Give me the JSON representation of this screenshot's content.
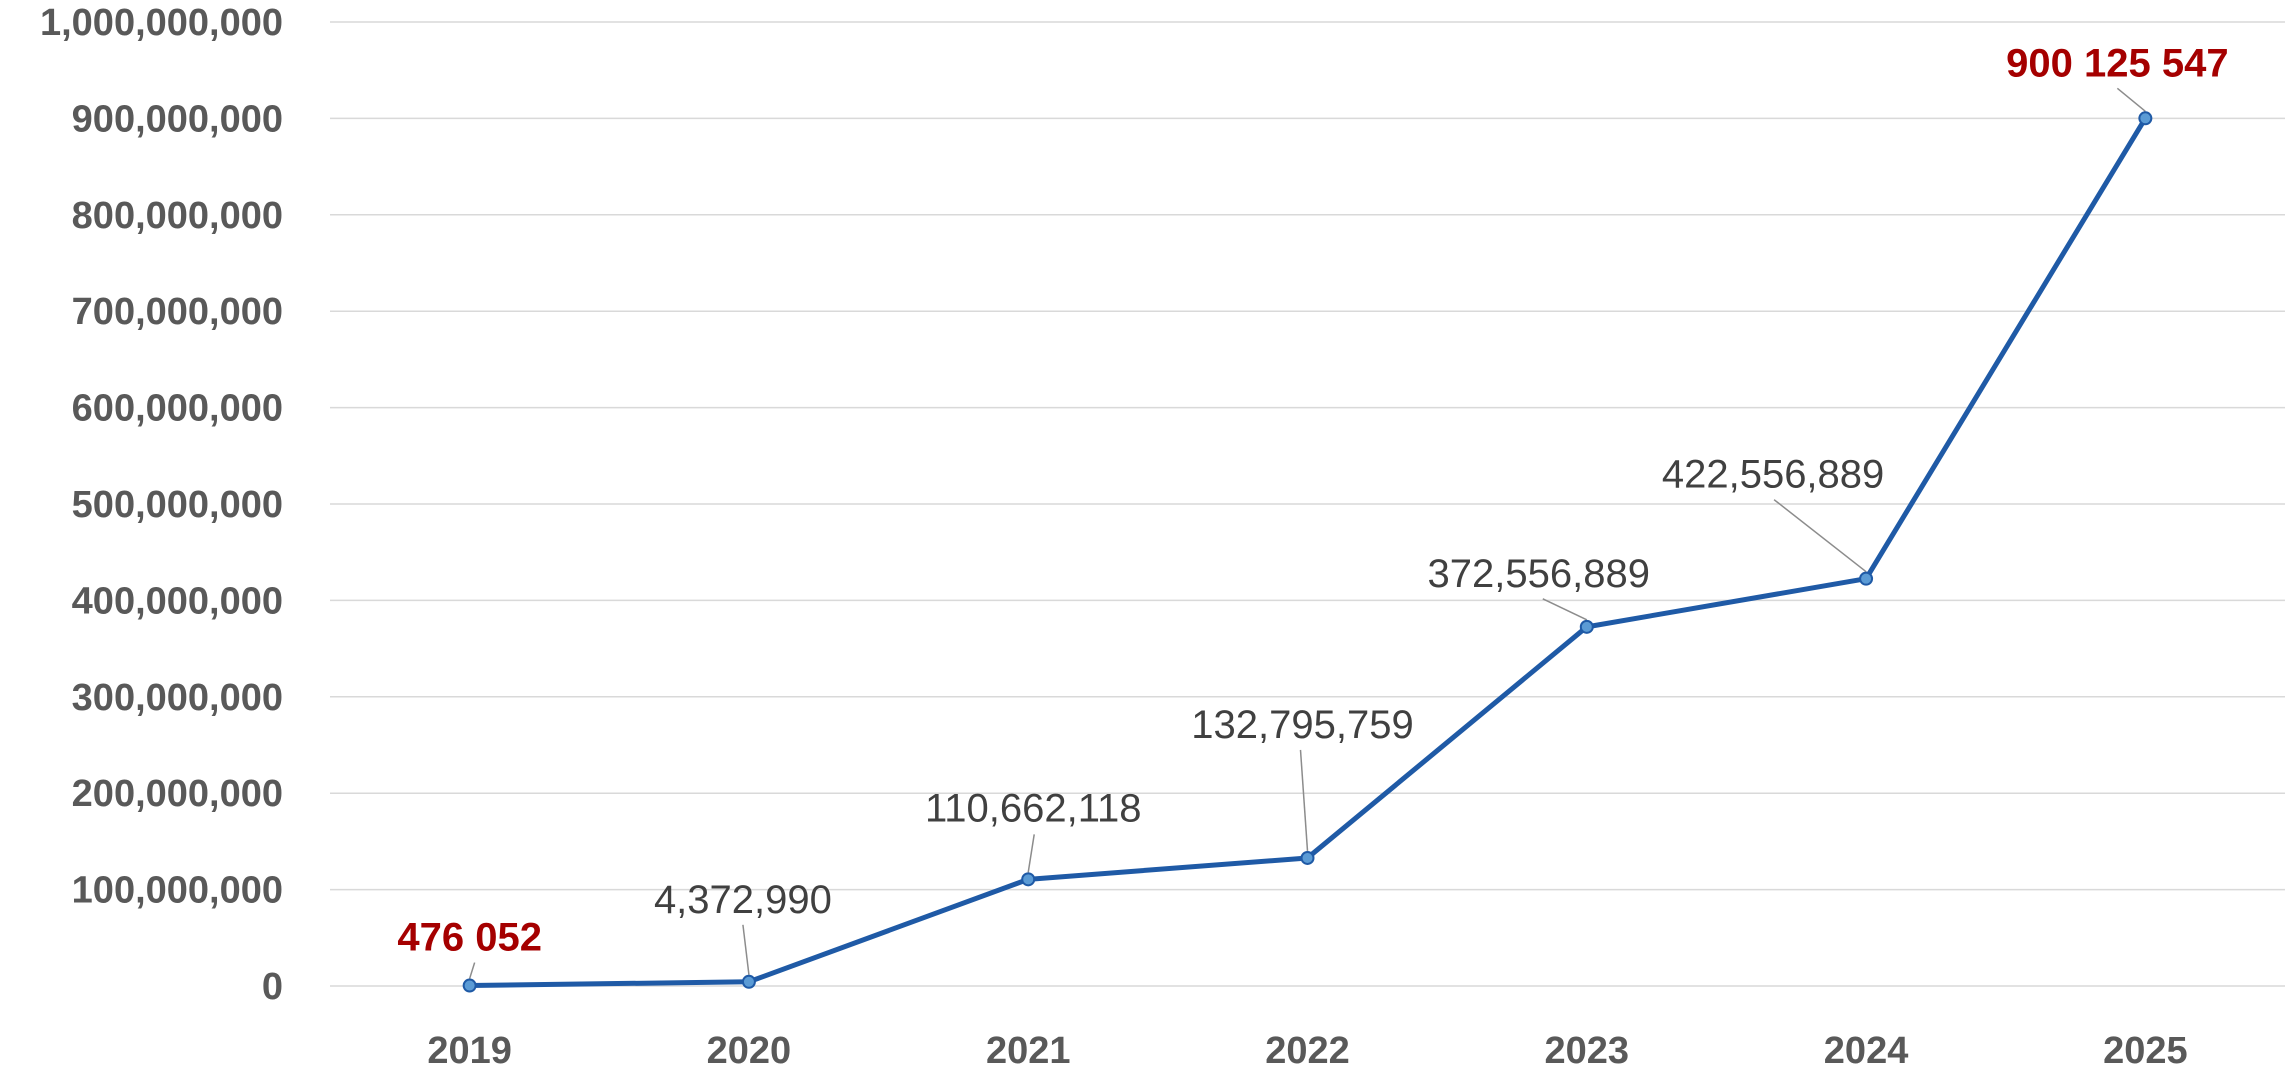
{
  "chart_data": {
    "type": "line",
    "title": "",
    "xlabel": "",
    "ylabel": "",
    "categories": [
      "2019",
      "2020",
      "2021",
      "2022",
      "2023",
      "2024",
      "2025"
    ],
    "series": [
      {
        "values": [
          476052,
          4372990,
          110662118,
          132795759,
          372556889,
          422556889,
          900125547
        ],
        "color": "#1f5aa6"
      }
    ],
    "data_labels": [
      "476 052",
      "4,372,990",
      "110,662,118",
      "132,795,759",
      "372,556,889",
      "422,556,889",
      "900 125 547"
    ],
    "highlighted_labels": [
      0,
      6
    ],
    "highlight_color": "#a50000",
    "ylim": [
      0,
      1000000000
    ],
    "yticks": [
      0,
      100000000,
      200000000,
      300000000,
      400000000,
      500000000,
      600000000,
      700000000,
      800000000,
      900000000,
      1000000000
    ],
    "ytick_labels": [
      "0",
      "100,000,000",
      "200,000,000",
      "300,000,000",
      "400,000,000",
      "500,000,000",
      "600,000,000",
      "700,000,000",
      "800,000,000",
      "900,000,000",
      "1,000,000,000"
    ],
    "grid": true,
    "legend": "none"
  }
}
